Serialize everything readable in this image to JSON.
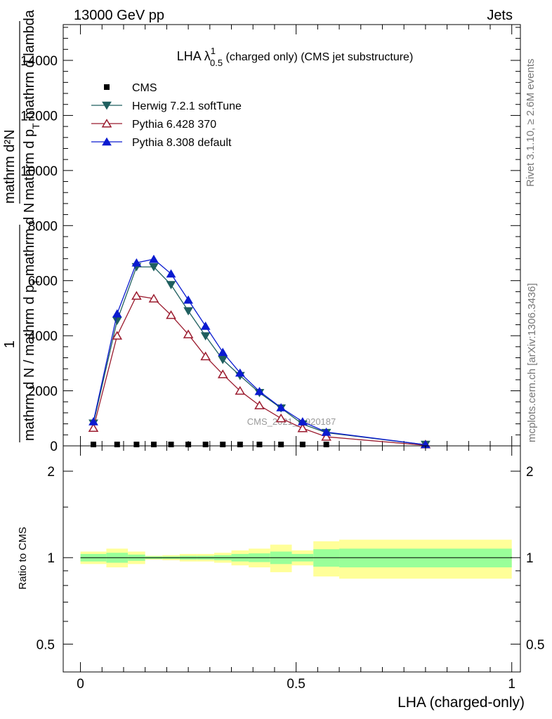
{
  "header": {
    "left": "13000 GeV pp",
    "right": "Jets"
  },
  "side_labels": {
    "rivet": "Rivet 3.1.10, ≥ 2.6M events",
    "mcplots": "mcplots.cern.ch [arXiv:1306.3436]"
  },
  "watermark": "CMS_2021_I1920187",
  "chart_data": [
    {
      "type": "line",
      "title_main": "LHA λ",
      "title_sup": "1",
      "title_sub": "0.5",
      "title_rest": " (charged only) (CMS jet substructure)",
      "xlim": [
        -0.04,
        1.02
      ],
      "ylim": [
        0,
        15300
      ],
      "yticks": [
        0,
        2000,
        4000,
        6000,
        8000,
        10000,
        12000,
        14000
      ],
      "ytick_labels": [
        "0",
        "2000",
        "4000",
        "6000",
        "8000",
        "10000",
        "12000",
        "14000"
      ],
      "ylabel_parts": {
        "numerator_top": "mathrm d²N",
        "denominator_top": "mathrm d p",
        "denominator_sub": "T",
        "denominator_rest": " mathrm d lambda",
        "one": "1",
        "lower_num": "mathrm d N / mathrm d p",
        "lower_sub": "T",
        "lower_den": "mathrm d N"
      },
      "legend_position": "top-left",
      "series": [
        {
          "name": "CMS",
          "marker": "square",
          "color": "#000000",
          "x": [
            0.03,
            0.085,
            0.13,
            0.17,
            0.21,
            0.25,
            0.29,
            0.33,
            0.37,
            0.415,
            0.465,
            0.515,
            0.57
          ],
          "values": [
            20,
            20,
            20,
            20,
            20,
            20,
            20,
            20,
            20,
            20,
            20,
            20,
            20
          ]
        },
        {
          "name": "Herwig 7.2.1 softTune",
          "marker": "triangle-down",
          "color": "#1f5f5f",
          "x": [
            0.03,
            0.085,
            0.13,
            0.17,
            0.21,
            0.25,
            0.29,
            0.33,
            0.37,
            0.415,
            0.465,
            0.515,
            0.57,
            0.8
          ],
          "values": [
            820,
            4550,
            6500,
            6500,
            5850,
            4900,
            3990,
            3130,
            2550,
            1930,
            1370,
            790,
            480,
            40
          ]
        },
        {
          "name": "Pythia 6.428 370",
          "marker": "triangle-up-open",
          "color": "#9b1b2e",
          "x": [
            0.03,
            0.085,
            0.13,
            0.17,
            0.21,
            0.25,
            0.29,
            0.33,
            0.37,
            0.415,
            0.465,
            0.515,
            0.57,
            0.8
          ],
          "values": [
            650,
            4000,
            5450,
            5350,
            4750,
            4050,
            3250,
            2600,
            2000,
            1470,
            1000,
            640,
            330,
            20
          ]
        },
        {
          "name": "Pythia 8.308 default",
          "marker": "triangle-up",
          "color": "#0a1bd0",
          "x": [
            0.03,
            0.085,
            0.13,
            0.17,
            0.21,
            0.25,
            0.29,
            0.33,
            0.37,
            0.415,
            0.465,
            0.515,
            0.57,
            0.8
          ],
          "values": [
            880,
            4800,
            6650,
            6780,
            6250,
            5300,
            4350,
            3400,
            2650,
            1980,
            1390,
            880,
            500,
            40
          ]
        }
      ]
    },
    {
      "type": "area",
      "ylabel": "Ratio to CMS",
      "xlabel": "LHA (charged-only)",
      "xlim": [
        -0.04,
        1.02
      ],
      "ylim": [
        0.4,
        2.45
      ],
      "scale": "log",
      "yticks": [
        0.5,
        1,
        2
      ],
      "ytick_labels": [
        "0.5",
        "1",
        "2"
      ],
      "xticks": [
        0,
        0.5,
        1
      ],
      "xtick_labels": [
        "0",
        "0.5",
        "1"
      ],
      "reference_line": 1,
      "bins": [
        {
          "x0": 0.0,
          "x1": 0.06,
          "inner": [
            0.97,
            1.03
          ],
          "outer": [
            0.95,
            1.05
          ]
        },
        {
          "x0": 0.06,
          "x1": 0.11,
          "inner": [
            0.96,
            1.04
          ],
          "outer": [
            0.925,
            1.075
          ]
        },
        {
          "x0": 0.11,
          "x1": 0.15,
          "inner": [
            0.975,
            1.025
          ],
          "outer": [
            0.95,
            1.05
          ]
        },
        {
          "x0": 0.15,
          "x1": 0.19,
          "inner": [
            0.99,
            1.01
          ],
          "outer": [
            0.985,
            1.015
          ]
        },
        {
          "x0": 0.19,
          "x1": 0.23,
          "inner": [
            0.99,
            1.01
          ],
          "outer": [
            0.98,
            1.02
          ]
        },
        {
          "x0": 0.23,
          "x1": 0.27,
          "inner": [
            0.985,
            1.015
          ],
          "outer": [
            0.97,
            1.03
          ]
        },
        {
          "x0": 0.27,
          "x1": 0.31,
          "inner": [
            0.985,
            1.015
          ],
          "outer": [
            0.97,
            1.03
          ]
        },
        {
          "x0": 0.31,
          "x1": 0.35,
          "inner": [
            0.98,
            1.02
          ],
          "outer": [
            0.96,
            1.04
          ]
        },
        {
          "x0": 0.35,
          "x1": 0.39,
          "inner": [
            0.97,
            1.03
          ],
          "outer": [
            0.94,
            1.06
          ]
        },
        {
          "x0": 0.39,
          "x1": 0.44,
          "inner": [
            0.965,
            1.035
          ],
          "outer": [
            0.925,
            1.075
          ]
        },
        {
          "x0": 0.44,
          "x1": 0.49,
          "inner": [
            0.95,
            1.05
          ],
          "outer": [
            0.89,
            1.11
          ]
        },
        {
          "x0": 0.49,
          "x1": 0.54,
          "inner": [
            0.97,
            1.03
          ],
          "outer": [
            0.94,
            1.06
          ]
        },
        {
          "x0": 0.54,
          "x1": 0.6,
          "inner": [
            0.93,
            1.07
          ],
          "outer": [
            0.86,
            1.14
          ]
        },
        {
          "x0": 0.6,
          "x1": 1.0,
          "inner": [
            0.925,
            1.075
          ],
          "outer": [
            0.845,
            1.155
          ]
        }
      ]
    }
  ]
}
